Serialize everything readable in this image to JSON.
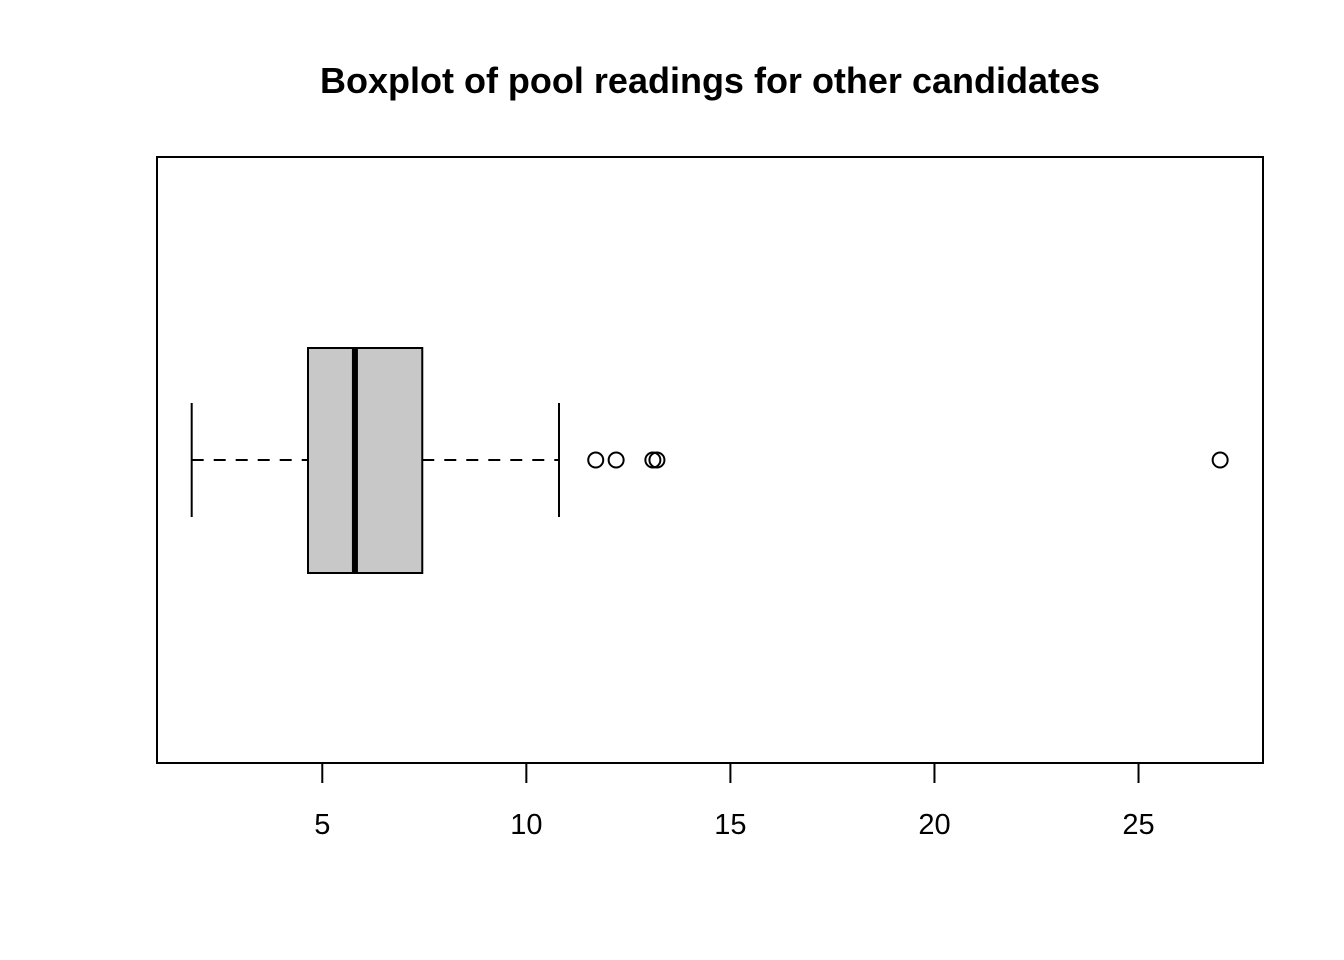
{
  "chart_data": {
    "type": "boxplot",
    "orientation": "horizontal",
    "title": "Boxplot of pool readings for other candidates",
    "xlabel": "",
    "ylabel": "",
    "xlim": [
      0.95,
      28.05
    ],
    "x_ticks": [
      5,
      10,
      15,
      20,
      25
    ],
    "x_tick_labels": [
      "5",
      "10",
      "15",
      "20",
      "25"
    ],
    "box": {
      "whisker_low": 1.8,
      "q1": 4.65,
      "median": 5.8,
      "q3": 7.45,
      "whisker_high": 10.8
    },
    "outliers": [
      11.7,
      12.2,
      13.1,
      13.2,
      27.0
    ],
    "colors": {
      "box_fill": "#c8c8c8",
      "stroke": "#000000"
    },
    "grid": false
  }
}
